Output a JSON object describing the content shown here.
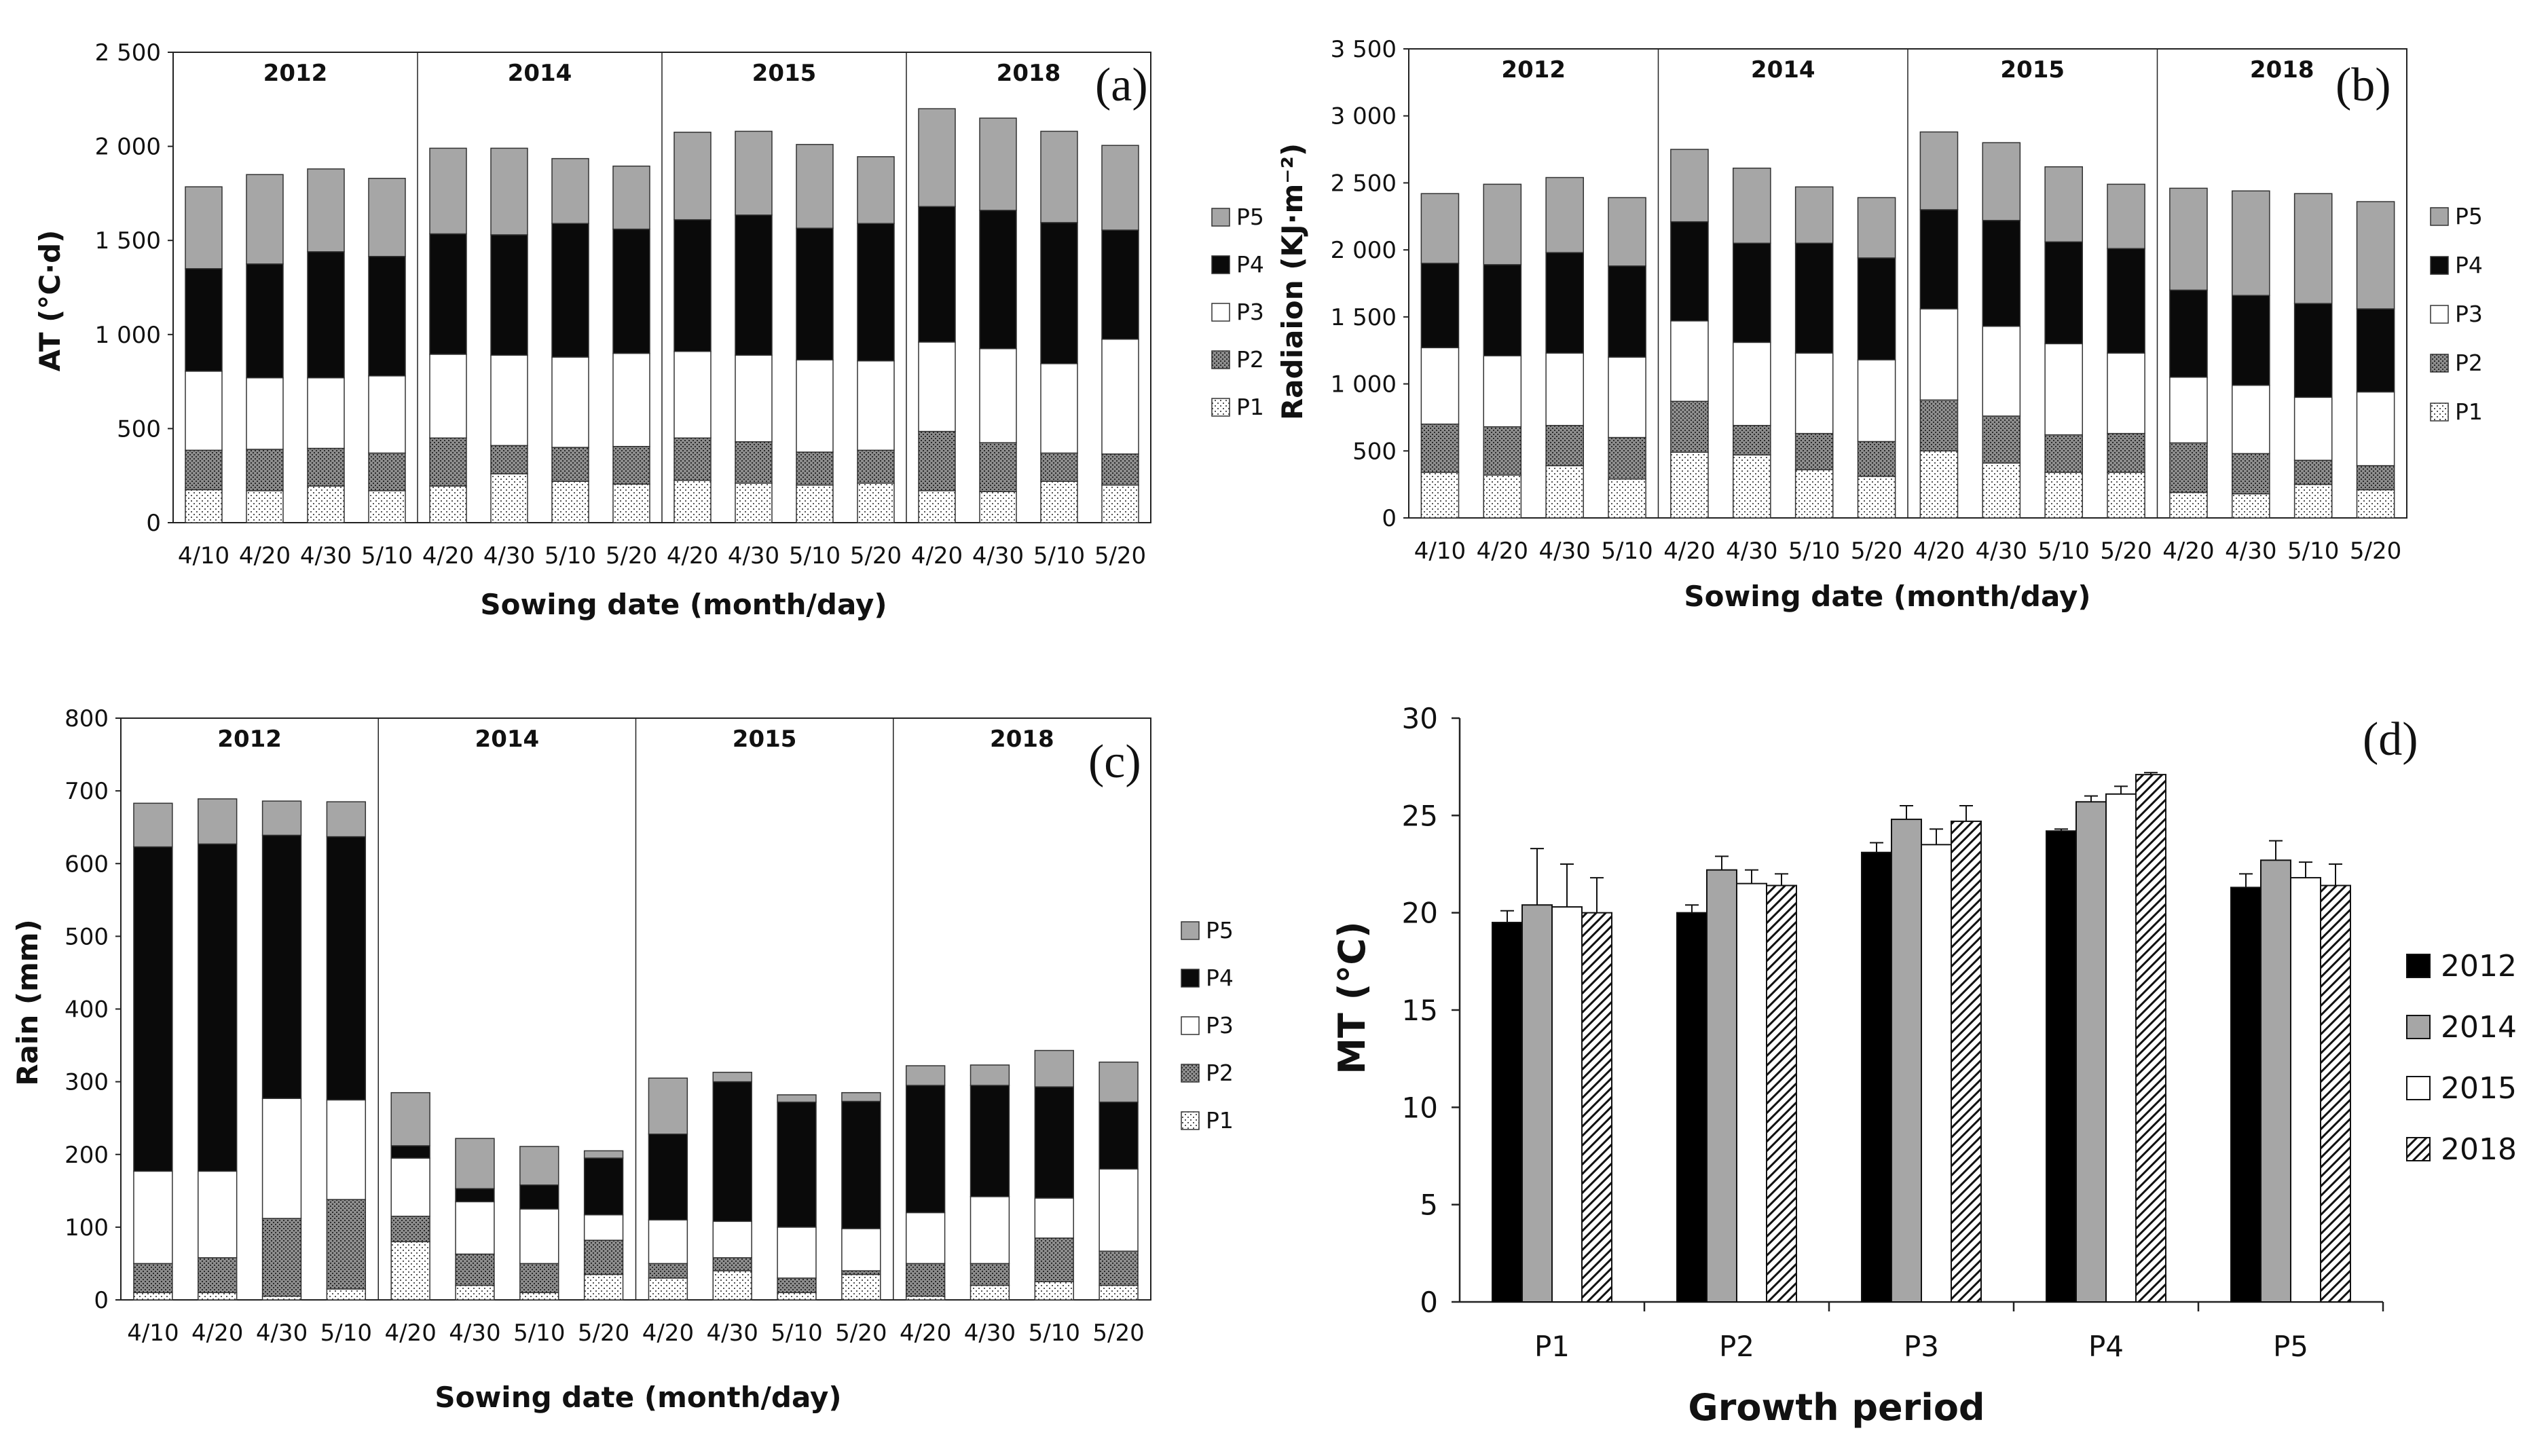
{
  "colors": {
    "P5": "#a6a6a6",
    "P4": "#0a0a0a",
    "P3": "#ffffff",
    "P2": "#8c8c8c",
    "P1": "#ececec",
    "y2012": "#000000",
    "y2014": "#a6a6a6",
    "y2015": "#ffffff"
  },
  "chart_data": [
    {
      "id": "a",
      "type": "bar",
      "stacked": true,
      "panel_label": "(a)",
      "ylabel": "AT (°C·d)",
      "xlabel": "Sowing date (month/day)",
      "ylim": [
        0,
        2500
      ],
      "yticks": [
        0,
        500,
        1000,
        1500,
        2000,
        2500
      ],
      "ytick_labels": [
        "0",
        "500",
        "1 000",
        "1 500",
        "2 000",
        "2 500"
      ],
      "years": [
        "2012",
        "2014",
        "2015",
        "2018"
      ],
      "groups": [
        4,
        4,
        4,
        4
      ],
      "categories": [
        "4/10",
        "4/20",
        "4/30",
        "5/10",
        "4/20",
        "4/30",
        "5/10",
        "5/20",
        "4/20",
        "4/30",
        "5/10",
        "5/20",
        "4/20",
        "4/30",
        "5/10",
        "5/20"
      ],
      "legend": [
        "P5",
        "P4",
        "P3",
        "P2",
        "P1"
      ],
      "series": [
        {
          "name": "P1",
          "values": [
            175,
            170,
            195,
            170,
            195,
            260,
            220,
            205,
            225,
            210,
            200,
            210,
            170,
            165,
            220,
            200
          ]
        },
        {
          "name": "P2",
          "values": [
            210,
            220,
            200,
            200,
            255,
            150,
            180,
            200,
            225,
            220,
            175,
            175,
            315,
            260,
            150,
            165
          ]
        },
        {
          "name": "P3",
          "values": [
            420,
            380,
            375,
            410,
            445,
            480,
            480,
            495,
            460,
            460,
            490,
            475,
            475,
            500,
            475,
            610
          ]
        },
        {
          "name": "P4",
          "values": [
            545,
            605,
            670,
            635,
            640,
            640,
            710,
            660,
            700,
            745,
            700,
            730,
            720,
            735,
            750,
            580
          ]
        },
        {
          "name": "P5",
          "values": [
            435,
            475,
            440,
            415,
            455,
            460,
            345,
            335,
            465,
            445,
            445,
            355,
            520,
            490,
            485,
            450
          ]
        }
      ]
    },
    {
      "id": "b",
      "type": "bar",
      "stacked": true,
      "panel_label": "(b)",
      "ylabel": "Radiaion (KJ·m⁻²)",
      "xlabel": "Sowing date (month/day)",
      "ylim": [
        0,
        3500
      ],
      "yticks": [
        0,
        500,
        1000,
        1500,
        2000,
        2500,
        3000,
        3500
      ],
      "ytick_labels": [
        "0",
        "500",
        "1 000",
        "1 500",
        "2 000",
        "2 500",
        "3 000",
        "3 500"
      ],
      "years": [
        "2012",
        "2014",
        "2015",
        "2018"
      ],
      "groups": [
        4,
        4,
        4,
        4
      ],
      "categories": [
        "4/10",
        "4/20",
        "4/30",
        "5/10",
        "4/20",
        "4/30",
        "5/10",
        "5/20",
        "4/20",
        "4/30",
        "5/10",
        "5/20",
        "4/20",
        "4/30",
        "5/10",
        "5/20"
      ],
      "legend": [
        "P5",
        "P4",
        "P3",
        "P2",
        "P1"
      ],
      "series": [
        {
          "name": "P1",
          "values": [
            340,
            320,
            390,
            290,
            490,
            470,
            360,
            310,
            500,
            410,
            340,
            340,
            190,
            180,
            250,
            210
          ]
        },
        {
          "name": "P2",
          "values": [
            360,
            360,
            300,
            310,
            380,
            220,
            270,
            260,
            380,
            350,
            280,
            290,
            370,
            300,
            180,
            180
          ]
        },
        {
          "name": "P3",
          "values": [
            570,
            530,
            540,
            600,
            600,
            620,
            600,
            610,
            680,
            670,
            680,
            600,
            490,
            510,
            470,
            550
          ]
        },
        {
          "name": "P4",
          "values": [
            630,
            680,
            750,
            680,
            740,
            740,
            820,
            760,
            740,
            790,
            760,
            780,
            650,
            670,
            700,
            620
          ]
        },
        {
          "name": "P5",
          "values": [
            520,
            600,
            560,
            510,
            540,
            560,
            420,
            450,
            580,
            580,
            560,
            480,
            760,
            780,
            820,
            800
          ]
        }
      ]
    },
    {
      "id": "c",
      "type": "bar",
      "stacked": true,
      "panel_label": "(c)",
      "ylabel": "Rain (mm)",
      "xlabel": "Sowing date (month/day)",
      "ylim": [
        0,
        800
      ],
      "yticks": [
        0,
        100,
        200,
        300,
        400,
        500,
        600,
        700,
        800
      ],
      "ytick_labels": [
        "0",
        "100",
        "200",
        "300",
        "400",
        "500",
        "600",
        "700",
        "800"
      ],
      "years": [
        "2012",
        "2014",
        "2015",
        "2018"
      ],
      "groups": [
        4,
        4,
        4,
        4
      ],
      "categories": [
        "4/10",
        "4/20",
        "4/30",
        "5/10",
        "4/20",
        "4/30",
        "5/10",
        "5/20",
        "4/20",
        "4/30",
        "5/10",
        "5/20",
        "4/20",
        "4/30",
        "5/10",
        "5/20"
      ],
      "legend": [
        "P5",
        "P4",
        "P3",
        "P2",
        "P1"
      ],
      "series": [
        {
          "name": "P1",
          "values": [
            10,
            10,
            5,
            15,
            80,
            20,
            10,
            35,
            30,
            40,
            10,
            35,
            5,
            20,
            25,
            20
          ]
        },
        {
          "name": "P2",
          "values": [
            40,
            48,
            107,
            123,
            35,
            43,
            40,
            47,
            20,
            18,
            20,
            5,
            45,
            30,
            60,
            47
          ]
        },
        {
          "name": "P3",
          "values": [
            127,
            119,
            165,
            137,
            80,
            72,
            75,
            35,
            60,
            50,
            70,
            58,
            70,
            92,
            55,
            113
          ]
        },
        {
          "name": "P4",
          "values": [
            446,
            450,
            362,
            362,
            17,
            18,
            33,
            78,
            118,
            192,
            172,
            175,
            175,
            153,
            153,
            92
          ]
        },
        {
          "name": "P5",
          "values": [
            60,
            62,
            47,
            48,
            73,
            69,
            53,
            10,
            77,
            13,
            10,
            12,
            27,
            28,
            50,
            55
          ]
        }
      ]
    },
    {
      "id": "d",
      "type": "bar",
      "panel_label": "(d)",
      "ylabel": "MT (°C)",
      "xlabel": "Growth period",
      "ylim": [
        0,
        30
      ],
      "yticks": [
        0,
        5,
        10,
        15,
        20,
        25,
        30
      ],
      "ytick_labels": [
        "0",
        "5",
        "10",
        "15",
        "20",
        "25",
        "30"
      ],
      "categories": [
        "P1",
        "P2",
        "P3",
        "P4",
        "P5"
      ],
      "series": [
        {
          "name": "2012",
          "values": [
            19.5,
            20.0,
            23.1,
            24.2,
            21.3
          ],
          "errors": [
            0.6,
            0.4,
            0.5,
            0.1,
            0.7
          ]
        },
        {
          "name": "2014",
          "values": [
            20.4,
            22.2,
            24.8,
            25.7,
            22.7
          ],
          "errors": [
            2.9,
            0.7,
            0.7,
            0.3,
            1.0
          ]
        },
        {
          "name": "2015",
          "values": [
            20.3,
            21.5,
            23.5,
            26.1,
            21.8
          ],
          "errors": [
            2.2,
            0.7,
            0.8,
            0.4,
            0.8
          ]
        },
        {
          "name": "2018",
          "values": [
            20.0,
            21.4,
            24.7,
            27.1,
            21.4
          ],
          "errors": [
            1.8,
            0.6,
            0.8,
            0.1,
            1.1
          ]
        }
      ]
    }
  ]
}
